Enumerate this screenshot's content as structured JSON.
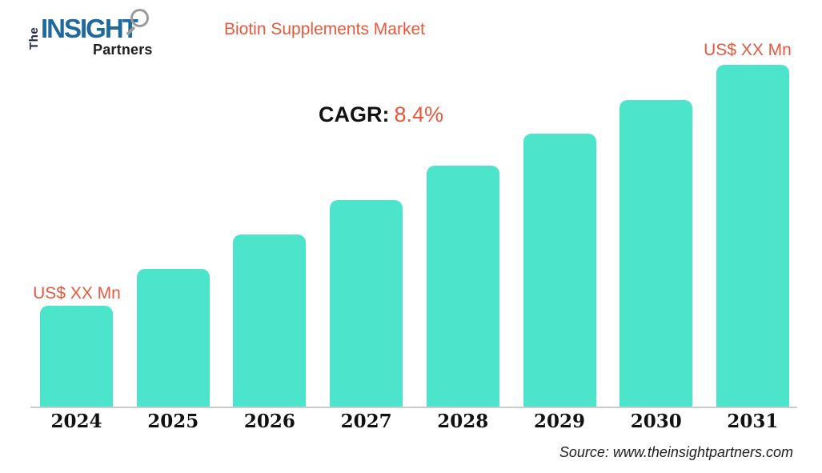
{
  "logo": {
    "the": "The",
    "insight": "INSIGHT",
    "partners": "Partners"
  },
  "header": {
    "title": "Biotin Supplements Market"
  },
  "cagr": {
    "label": "CAGR:",
    "value": "8.4%"
  },
  "value_labels": {
    "first_bar": "US$ XX Mn",
    "last_bar": "US$ XX Mn"
  },
  "source": "Source: www.theinsightpartners.com",
  "colors": {
    "bar_teal": "#4ce5cb",
    "accent_orange": "#e8583c",
    "logo_blue": "#1e6a9e",
    "logo_gray": "#9b9b9b",
    "text_dark": "#111111",
    "axis_gray": "#cccccc"
  },
  "chart_data": {
    "type": "bar",
    "title": "Biotin Supplements Market",
    "xlabel": "",
    "ylabel": "",
    "categories": [
      "2024",
      "2025",
      "2026",
      "2027",
      "2028",
      "2029",
      "2030",
      "2031"
    ],
    "values_relative_pct_of_max": [
      29.5,
      40.3,
      50.4,
      60.4,
      70.5,
      79.9,
      89.7,
      100
    ],
    "value_axis_hidden": true,
    "data_labels": {
      "2024": "US$ XX Mn",
      "2031": "US$ XX Mn"
    },
    "annotation_cagr": "8.4%",
    "legend": false,
    "gridlines": false,
    "bar_corner_radius_px": 10
  }
}
